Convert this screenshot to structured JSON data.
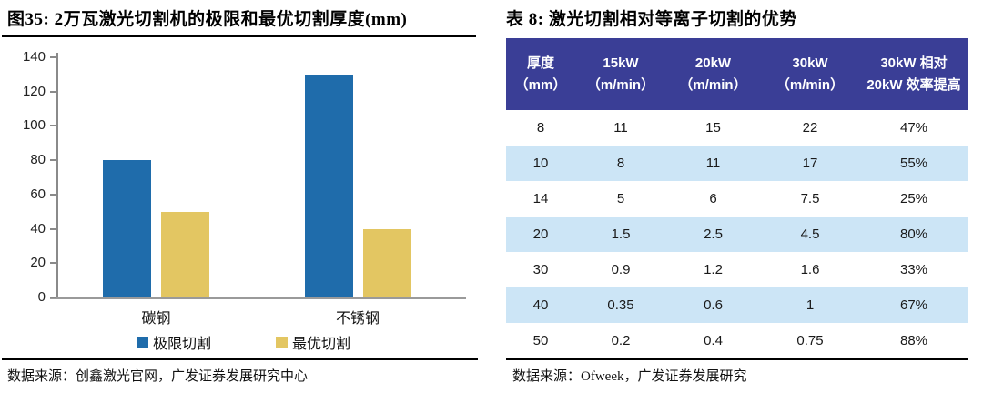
{
  "left_panel": {
    "title": "图35:  2万瓦激光切割机的极限和最优切割厚度(mm)",
    "source": "数据来源：创鑫激光官网，广发证券发展研究中心"
  },
  "right_panel": {
    "title": "表 8:  激光切割相对等离子切割的优势",
    "source": "数据来源：Ofweek，广发证券发展研究",
    "table": {
      "header_bg": "#3A3E96",
      "alt_row_bg": "#CCE5F6",
      "header": [
        [
          "厚度",
          "（mm）"
        ],
        [
          "15kW",
          "（m/min）"
        ],
        [
          "20kW",
          "（m/min）"
        ],
        [
          "30kW",
          "（m/min）"
        ],
        [
          "30kW 相对",
          "20kW 效率提高"
        ]
      ],
      "rows": [
        [
          "8",
          "11",
          "15",
          "22",
          "47%"
        ],
        [
          "10",
          "8",
          "11",
          "17",
          "55%"
        ],
        [
          "14",
          "5",
          "6",
          "7.5",
          "25%"
        ],
        [
          "20",
          "1.5",
          "2.5",
          "4.5",
          "80%"
        ],
        [
          "30",
          "0.9",
          "1.2",
          "1.6",
          "33%"
        ],
        [
          "40",
          "0.35",
          "0.6",
          "1",
          "67%"
        ],
        [
          "50",
          "0.2",
          "0.4",
          "0.75",
          "88%"
        ]
      ]
    }
  },
  "chart_data": {
    "type": "bar",
    "title": "2万瓦激光切割机的极限和最优切割厚度(mm)",
    "categories": [
      "碳钢",
      "不锈钢"
    ],
    "series": [
      {
        "name": "极限切割",
        "color": "#1F6CAB",
        "values": [
          80,
          130
        ]
      },
      {
        "name": "最优切割",
        "color": "#E3C662",
        "values": [
          50,
          40
        ]
      }
    ],
    "xlabel": "",
    "ylabel": "",
    "ylim": [
      0,
      140
    ],
    "ytick_step": 20,
    "grid": false,
    "legend_position": "bottom"
  }
}
